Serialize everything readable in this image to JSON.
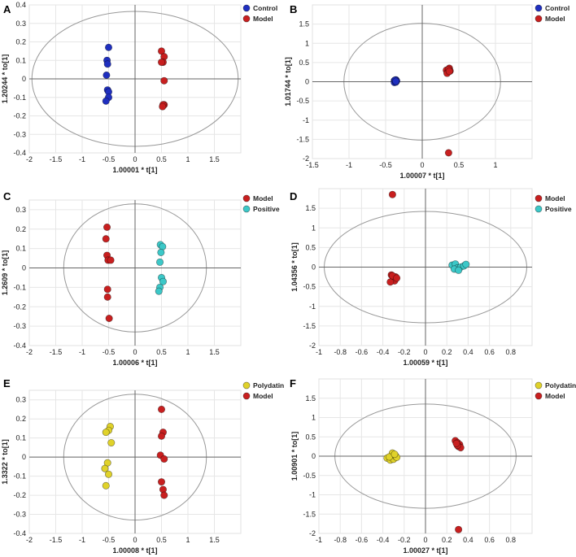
{
  "colors": {
    "Control": "#1f2fbf",
    "Model": "#c81f1f",
    "Positive": "#3cc8c8",
    "Polydatin": "#e0d22a",
    "ellipse": "#999999",
    "grid": "#e6e6e6"
  },
  "chart_data": [
    {
      "type": "scatter",
      "panel": "A",
      "xlabel": "1.00001 * t[1]",
      "ylabel": "1.20244 * to[1]",
      "xlim": [
        -2,
        2
      ],
      "ylim": [
        -0.4,
        0.4
      ],
      "xticks": [
        -2,
        -1.5,
        -1,
        -0.5,
        0,
        0.5,
        1,
        1.5
      ],
      "xtick_labels": [
        "-2",
        "-1.5",
        "-1",
        "-0.5",
        "0",
        "0.5",
        "1",
        "1.5"
      ],
      "yticks": [
        -0.4,
        -0.3,
        -0.2,
        -0.1,
        0,
        0.1,
        0.2,
        0.3,
        0.4
      ],
      "ytick_labels": [
        "-0.4",
        "-0.3",
        "-0.2",
        "-0.1",
        "0",
        "0.1",
        "0.2",
        "0.3",
        "0.4"
      ],
      "ellipse": {
        "rx": 1.95,
        "ry": 0.365
      },
      "legend": [
        "Control",
        "Model"
      ],
      "series": [
        {
          "name": "Control",
          "x": [
            -0.5,
            -0.53,
            -0.52,
            -0.54,
            -0.52,
            -0.5,
            -0.5,
            -0.55
          ],
          "y": [
            0.17,
            0.1,
            0.08,
            0.02,
            -0.06,
            -0.07,
            -0.1,
            -0.12
          ]
        },
        {
          "name": "Model",
          "x": [
            0.5,
            0.55,
            0.53,
            0.5,
            0.55,
            0.55,
            0.53,
            0.52
          ],
          "y": [
            0.15,
            0.12,
            0.09,
            0.09,
            -0.01,
            -0.14,
            -0.14,
            -0.15
          ]
        }
      ]
    },
    {
      "type": "scatter",
      "panel": "B",
      "xlabel": "1.00007 * t[1]",
      "ylabel": "1.01744 * to[1]",
      "xlim": [
        -1.5,
        1.5
      ],
      "ylim": [
        -2,
        2
      ],
      "xticks": [
        -1.5,
        -1,
        -0.5,
        0,
        0.5,
        1
      ],
      "xtick_labels": [
        "-1.5",
        "-1",
        "-0.5",
        "0",
        "0.5",
        "1"
      ],
      "yticks": [
        -2,
        -1.5,
        -1,
        -0.5,
        0,
        0.5,
        1,
        1.5
      ],
      "ytick_labels": [
        "-2",
        "-1.5",
        "-1",
        "-0.5",
        "0",
        "0.5",
        "1",
        "1.5"
      ],
      "ellipse": {
        "rx": 1.07,
        "ry": 1.52
      },
      "legend": [
        "Control",
        "Model"
      ],
      "series": [
        {
          "name": "Control",
          "x": [
            -0.38,
            -0.36,
            -0.37,
            -0.35,
            -0.38,
            -0.36,
            -0.37,
            -0.36
          ],
          "y": [
            0.03,
            0.05,
            0.0,
            0.02,
            -0.02,
            -0.01,
            0.04,
            0.01
          ]
        },
        {
          "name": "Model",
          "x": [
            0.33,
            0.37,
            0.35,
            0.38,
            0.34,
            0.36,
            0.37,
            0.36
          ],
          "y": [
            0.3,
            0.35,
            0.25,
            0.28,
            0.22,
            0.32,
            0.27,
            -1.85
          ]
        }
      ]
    },
    {
      "type": "scatter",
      "panel": "C",
      "xlabel": "1.00006 * t[1]",
      "ylabel": "1.2609 * to[1]",
      "xlim": [
        -2,
        2
      ],
      "ylim": [
        -0.4,
        0.35
      ],
      "xticks": [
        -2,
        -1.5,
        -1,
        -0.5,
        0,
        0.5,
        1,
        1.5
      ],
      "xtick_labels": [
        "-2",
        "-1.5",
        "-1",
        "-0.5",
        "0",
        "0.5",
        "1",
        "1.5"
      ],
      "yticks": [
        -0.4,
        -0.3,
        -0.2,
        -0.1,
        0,
        0.1,
        0.2,
        0.3
      ],
      "ytick_labels": [
        "-0.4",
        "-0.3",
        "-0.2",
        "-0.1",
        "0",
        "0.1",
        "0.2",
        "0.3"
      ],
      "ellipse": {
        "rx": 1.35,
        "ry": 0.33
      },
      "legend": [
        "Model",
        "Positive"
      ],
      "series": [
        {
          "name": "Model",
          "x": [
            -0.53,
            -0.55,
            -0.53,
            -0.51,
            -0.46,
            -0.52,
            -0.52,
            -0.49
          ],
          "y": [
            0.21,
            0.15,
            0.065,
            0.04,
            0.04,
            -0.11,
            -0.15,
            -0.26
          ]
        },
        {
          "name": "Positive",
          "x": [
            0.48,
            0.52,
            0.49,
            0.47,
            0.5,
            0.53,
            0.47,
            0.45
          ],
          "y": [
            0.12,
            0.11,
            0.08,
            0.03,
            -0.05,
            -0.07,
            -0.1,
            -0.12
          ]
        }
      ]
    },
    {
      "type": "scatter",
      "panel": "D",
      "xlabel": "1.00059 * t[1]",
      "ylabel": "1.04356 * to[1]",
      "xlim": [
        -1,
        1
      ],
      "ylim": [
        -2,
        2
      ],
      "xticks": [
        -1,
        -0.8,
        -0.6,
        -0.4,
        -0.2,
        0,
        0.2,
        0.4,
        0.6,
        0.8
      ],
      "xtick_labels": [
        "-1",
        "-0.8",
        "-0.6",
        "-0.4",
        "-0.2",
        "0",
        "0.2",
        "0.4",
        "0.6",
        "0.8"
      ],
      "yticks": [
        -2,
        -1.5,
        -1,
        -0.5,
        0,
        0.5,
        1,
        1.5
      ],
      "ytick_labels": [
        "-2",
        "-1.5",
        "-1",
        "-0.5",
        "0",
        "0.5",
        "1",
        "1.5"
      ],
      "ellipse": {
        "rx": 0.95,
        "ry": 1.42
      },
      "legend": [
        "Model",
        "Positive"
      ],
      "series": [
        {
          "name": "Model",
          "x": [
            -0.31,
            -0.32,
            -0.28,
            -0.3,
            -0.29,
            -0.33,
            -0.31,
            -0.27
          ],
          "y": [
            1.85,
            -0.2,
            -0.25,
            -0.3,
            -0.35,
            -0.38,
            -0.22,
            -0.28
          ]
        },
        {
          "name": "Positive",
          "x": [
            0.25,
            0.28,
            0.3,
            0.33,
            0.36,
            0.38,
            0.27,
            0.31
          ],
          "y": [
            0.05,
            0.08,
            -0.02,
            0.0,
            0.03,
            0.07,
            -0.05,
            -0.08
          ]
        }
      ]
    },
    {
      "type": "scatter",
      "panel": "E",
      "xlabel": "1.00008 * t[1]",
      "ylabel": "1.3322 * to[1]",
      "xlim": [
        -2,
        2
      ],
      "ylim": [
        -0.4,
        0.35
      ],
      "xticks": [
        -2,
        -1.5,
        -1,
        -0.5,
        0,
        0.5,
        1,
        1.5
      ],
      "xtick_labels": [
        "-2",
        "-1.5",
        "-1",
        "-0.5",
        "0",
        "0.5",
        "1",
        "1.5"
      ],
      "yticks": [
        -0.4,
        -0.3,
        -0.2,
        -0.1,
        0,
        0.1,
        0.2,
        0.3
      ],
      "ytick_labels": [
        "-0.4",
        "-0.3",
        "-0.2",
        "-0.1",
        "0",
        "0.1",
        "0.2",
        "0.3"
      ],
      "ellipse": {
        "rx": 1.35,
        "ry": 0.33
      },
      "legend": [
        "Polydatin",
        "Model"
      ],
      "series": [
        {
          "name": "Polydatin",
          "x": [
            -0.47,
            -0.5,
            -0.55,
            -0.45,
            -0.52,
            -0.57,
            -0.5,
            -0.55
          ],
          "y": [
            0.16,
            0.14,
            0.13,
            0.075,
            -0.03,
            -0.06,
            -0.09,
            -0.15
          ]
        },
        {
          "name": "Model",
          "x": [
            0.5,
            0.53,
            0.5,
            0.48,
            0.55,
            0.5,
            0.53,
            0.55
          ],
          "y": [
            0.25,
            0.13,
            0.11,
            0.01,
            -0.01,
            -0.13,
            -0.17,
            -0.2
          ]
        }
      ]
    },
    {
      "type": "scatter",
      "panel": "F",
      "xlabel": "1.00027 * t[1]",
      "ylabel": "1.00901 * to[1]",
      "xlim": [
        -1,
        1
      ],
      "ylim": [
        -2,
        2
      ],
      "xticks": [
        -1,
        -0.8,
        -0.6,
        -0.4,
        -0.2,
        0,
        0.2,
        0.4,
        0.6,
        0.8
      ],
      "xtick_labels": [
        "-1",
        "-0.8",
        "-0.6",
        "-0.4",
        "-0.2",
        "0",
        "0.2",
        "0.4",
        "0.6",
        "0.8"
      ],
      "yticks": [
        -2,
        -1.5,
        -1,
        -0.5,
        0,
        0.5,
        1,
        1.5
      ],
      "ytick_labels": [
        "-2",
        "-1.5",
        "-1",
        "-0.5",
        "0",
        "0.5",
        "1",
        "1.5"
      ],
      "ellipse": {
        "rx": 0.85,
        "ry": 1.35
      },
      "legend": [
        "Polydatin",
        "Model"
      ],
      "series": [
        {
          "name": "Polydatin",
          "x": [
            -0.36,
            -0.33,
            -0.3,
            -0.28,
            -0.31,
            -0.27,
            -0.34,
            -0.29
          ],
          "y": [
            -0.05,
            -0.1,
            -0.08,
            0.0,
            0.08,
            -0.03,
            -0.02,
            0.05
          ]
        },
        {
          "name": "Model",
          "x": [
            0.28,
            0.3,
            0.32,
            0.31,
            0.33,
            0.3,
            0.29,
            0.31
          ],
          "y": [
            0.4,
            0.35,
            0.3,
            0.25,
            0.22,
            0.28,
            0.33,
            -1.9
          ]
        }
      ]
    }
  ]
}
